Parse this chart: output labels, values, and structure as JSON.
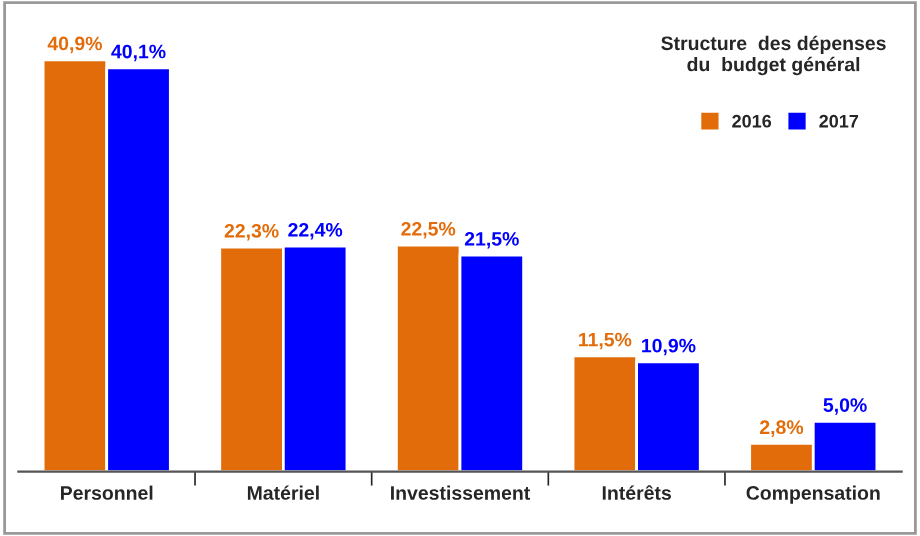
{
  "chart_data": {
    "type": "bar",
    "title": "Structure  des dépenses\ndu  budget général",
    "categories": [
      "Personnel",
      "Matériel",
      "Investissement",
      "Intérêts",
      "Compensation"
    ],
    "series": [
      {
        "name": "2016",
        "color": "#e36c0a",
        "values": [
          40.9,
          22.3,
          22.5,
          11.5,
          2.8
        ],
        "value_labels": [
          "40,9%",
          "22,3%",
          "22,5%",
          "11,5%",
          "2,8%"
        ]
      },
      {
        "name": "2017",
        "color": "#0000ff",
        "values": [
          40.1,
          22.4,
          21.5,
          10.9,
          5.0
        ],
        "value_labels": [
          "40,1%",
          "22,4%",
          "21,5%",
          "10,9%",
          "5,0%"
        ]
      }
    ],
    "legend": "top right",
    "grid": false
  }
}
